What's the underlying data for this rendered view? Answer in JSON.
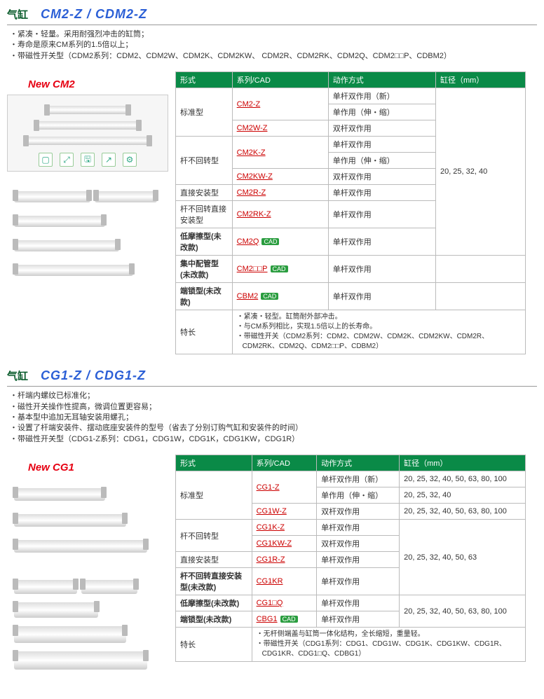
{
  "section1": {
    "label": "气缸",
    "model": "CM2-Z / CDM2-Z",
    "bullets": [
      "・紧凑・轻量。采用耐强烈冲击的缸筒；",
      "・寿命是原来CM系列的1.5倍以上；",
      "・带磁性开关型（CDM2系列：CDM2、CDM2W、CDM2K、CDM2KW、 CDM2R、CDM2RK、CDM2Q、CDM2□□P、CDBM2）"
    ],
    "badge": "New CM2",
    "headers": [
      "形式",
      "系列/CAD",
      "动作方式",
      "缸径（mm）"
    ],
    "rows": [
      {
        "type": "标准型",
        "rowspan": 3,
        "series": "CM2-Z",
        "action": "单杆双作用（新）",
        "bore": "20, 25, 32, 40",
        "boreRowspan": 9
      },
      {
        "series": "",
        "action": "单作用（伸・缩）"
      },
      {
        "series": "CM2W-Z",
        "action": "双杆双作用"
      },
      {
        "type": "杆不回转型",
        "rowspan": 3,
        "series": "CM2K-Z",
        "action": "单杆双作用"
      },
      {
        "series": "",
        "action": "单作用（伸・缩）"
      },
      {
        "series": "CM2KW-Z",
        "action": "双杆双作用"
      },
      {
        "type": "直接安装型",
        "series": "CM2R-Z",
        "action": "单杆双作用"
      },
      {
        "type": "杆不回转直接安装型",
        "series": "CM2RK-Z",
        "action": "单杆双作用"
      },
      {
        "type": "低摩擦型(未改款)",
        "typeBold": true,
        "series": "CM2Q",
        "cad": true,
        "action": "单杆双作用"
      },
      {
        "type": "集中配管型(未改款)",
        "typeBold": true,
        "series": "CM2□□P",
        "cad": true,
        "action": "单杆双作用",
        "bore": ""
      },
      {
        "type": "端锁型(未改款)",
        "typeBold": true,
        "series": "CBM2",
        "cad": true,
        "action": "单杆双作用",
        "bore": ""
      }
    ],
    "featureLabel": "特长",
    "features": [
      "紧凑・轻型。缸筒耐外部冲击。",
      "与CM系列相比，实现1.5倍以上的长寿命。",
      "带磁性开关（CDM2系列：CDM2、CDM2W、CDM2K、CDM2KW、CDM2R、CDM2RK、CDM2Q、CDM2□□P、CDBM2）"
    ]
  },
  "section2": {
    "label": "气缸",
    "model": "CG1-Z / CDG1-Z",
    "bullets": [
      "・杆端内螺纹已标准化；",
      "・磁性开关操作性提高，微调位置更容易；",
      "・基本型中追加无耳轴安装用螺孔；",
      "・设置了杆端安装件、摆动底座安装件的型号（省去了分别订购气缸和安装件的时间）",
      "・带磁性开关型（CDG1-Z系列：CDG1，CDG1W，CDG1K，CDG1KW，CDG1R）"
    ],
    "badge": "New CG1",
    "headers": [
      "形式",
      "系列/CAD",
      "动作方式",
      "缸径（mm）"
    ],
    "rows": [
      {
        "type": "标准型",
        "rowspan": 3,
        "series": "CG1-Z",
        "action": "单杆双作用（新）",
        "bore": "20, 25, 32, 40, 50, 63, 80, 100"
      },
      {
        "series": "",
        "action": "单作用（伸・缩）",
        "bore": "20, 25, 32, 40"
      },
      {
        "series": "CG1W-Z",
        "action": "双杆双作用",
        "bore": "20, 25, 32, 40, 50, 63, 80, 100"
      },
      {
        "type": "杆不回转型",
        "rowspan": 2,
        "series": "CG1K-Z",
        "action": "单杆双作用",
        "bore": "20, 25, 32, 40, 50, 63",
        "boreRowspan": 4
      },
      {
        "series": "CG1KW-Z",
        "action": "双杆双作用"
      },
      {
        "type": "直接安装型",
        "series": "CG1R-Z",
        "action": "单杆双作用"
      },
      {
        "type": "杆不回转直接安装型(未改款)",
        "typeBold": true,
        "series": "CG1KR",
        "action": "单杆双作用"
      },
      {
        "type": "低摩擦型(未改款)",
        "typeBold": true,
        "series": "CG1□Q",
        "action": "单杆双作用",
        "bore": "20, 25, 32, 40, 50, 63, 80, 100",
        "boreRowspan": 2
      },
      {
        "type": "端锁型(未改款)",
        "typeBold": true,
        "series": "CBG1",
        "cad": true,
        "action": "单杆双作用"
      }
    ],
    "featureLabel": "特长",
    "features": [
      "无杆侧端盖与缸筒一体化结构，全长缩短，重量轻。",
      "带磁性开关（CDG1系列：CDG1、CDG1W、CDG1K、CDG1KW、CDG1R、CDG1KR、CDG1□Q、CDBG1）"
    ]
  },
  "toolbar": [
    "▢",
    "⤢",
    "🖫",
    "↗",
    "⚙"
  ]
}
